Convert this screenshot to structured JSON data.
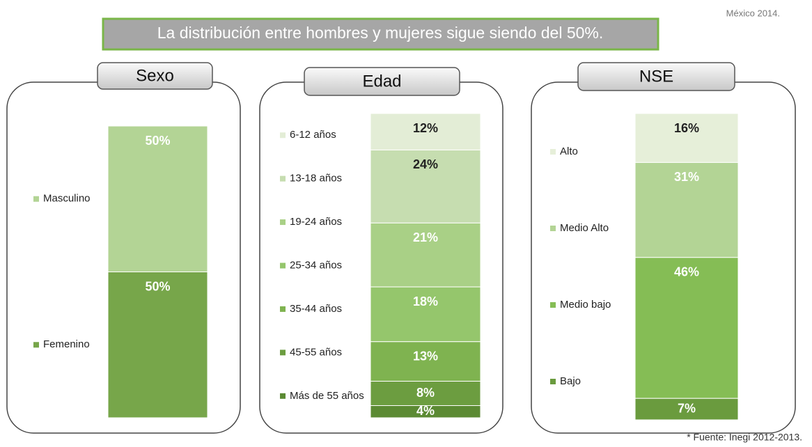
{
  "header": {
    "title": "La distribución entre hombres y mujeres sigue siendo del 50%.",
    "note": "México 2014."
  },
  "footer": "* Fuente: Inegi 2012-2013.",
  "chart_data": [
    {
      "type": "stacked_bar",
      "title": "Sexo",
      "series": [
        {
          "name": "Masculino",
          "color": "#b3d495",
          "values": [
            50
          ],
          "value_labels": [
            "50%"
          ]
        },
        {
          "name": "Femenino",
          "color": "#77a64a",
          "values": [
            50
          ],
          "value_labels": [
            "50%"
          ]
        }
      ]
    },
    {
      "type": "stacked_bar",
      "title": "Edad",
      "series": [
        {
          "name": "6-12 años",
          "color": "#e3edd6",
          "values": [
            12
          ],
          "value_labels": [
            "12%"
          ]
        },
        {
          "name": "13-18 años",
          "color": "#c6ddb0",
          "values": [
            24
          ],
          "value_labels": [
            "24%"
          ]
        },
        {
          "name": "19-24 años",
          "color": "#a9d086",
          "values": [
            21
          ],
          "value_labels": [
            "21%"
          ]
        },
        {
          "name": "25-34 años",
          "color": "#95c66c",
          "values": [
            18
          ],
          "value_labels": [
            "18%"
          ]
        },
        {
          "name": "35-44 años",
          "color": "#7fb350",
          "values": [
            13
          ],
          "value_labels": [
            "13%"
          ]
        },
        {
          "name": "45-55 años",
          "color": "#6c9d40",
          "values": [
            8
          ],
          "value_labels": [
            "8%"
          ]
        },
        {
          "name": "Más de 55 años",
          "color": "#5b8a33",
          "values": [
            4
          ],
          "value_labels": [
            "4%"
          ]
        }
      ]
    },
    {
      "type": "stacked_bar",
      "title": "NSE",
      "series": [
        {
          "name": "Alto",
          "color": "#e6efd9",
          "values": [
            16
          ],
          "value_labels": [
            "16%"
          ]
        },
        {
          "name": "Medio Alto",
          "color": "#b3d495",
          "values": [
            31
          ],
          "value_labels": [
            "31%"
          ]
        },
        {
          "name": "Medio bajo",
          "color": "#85bd55",
          "values": [
            46
          ],
          "value_labels": [
            "46%"
          ]
        },
        {
          "name": "Bajo",
          "color": "#6a9b3e",
          "values": [
            7
          ],
          "value_labels": [
            "7%"
          ]
        }
      ]
    }
  ]
}
